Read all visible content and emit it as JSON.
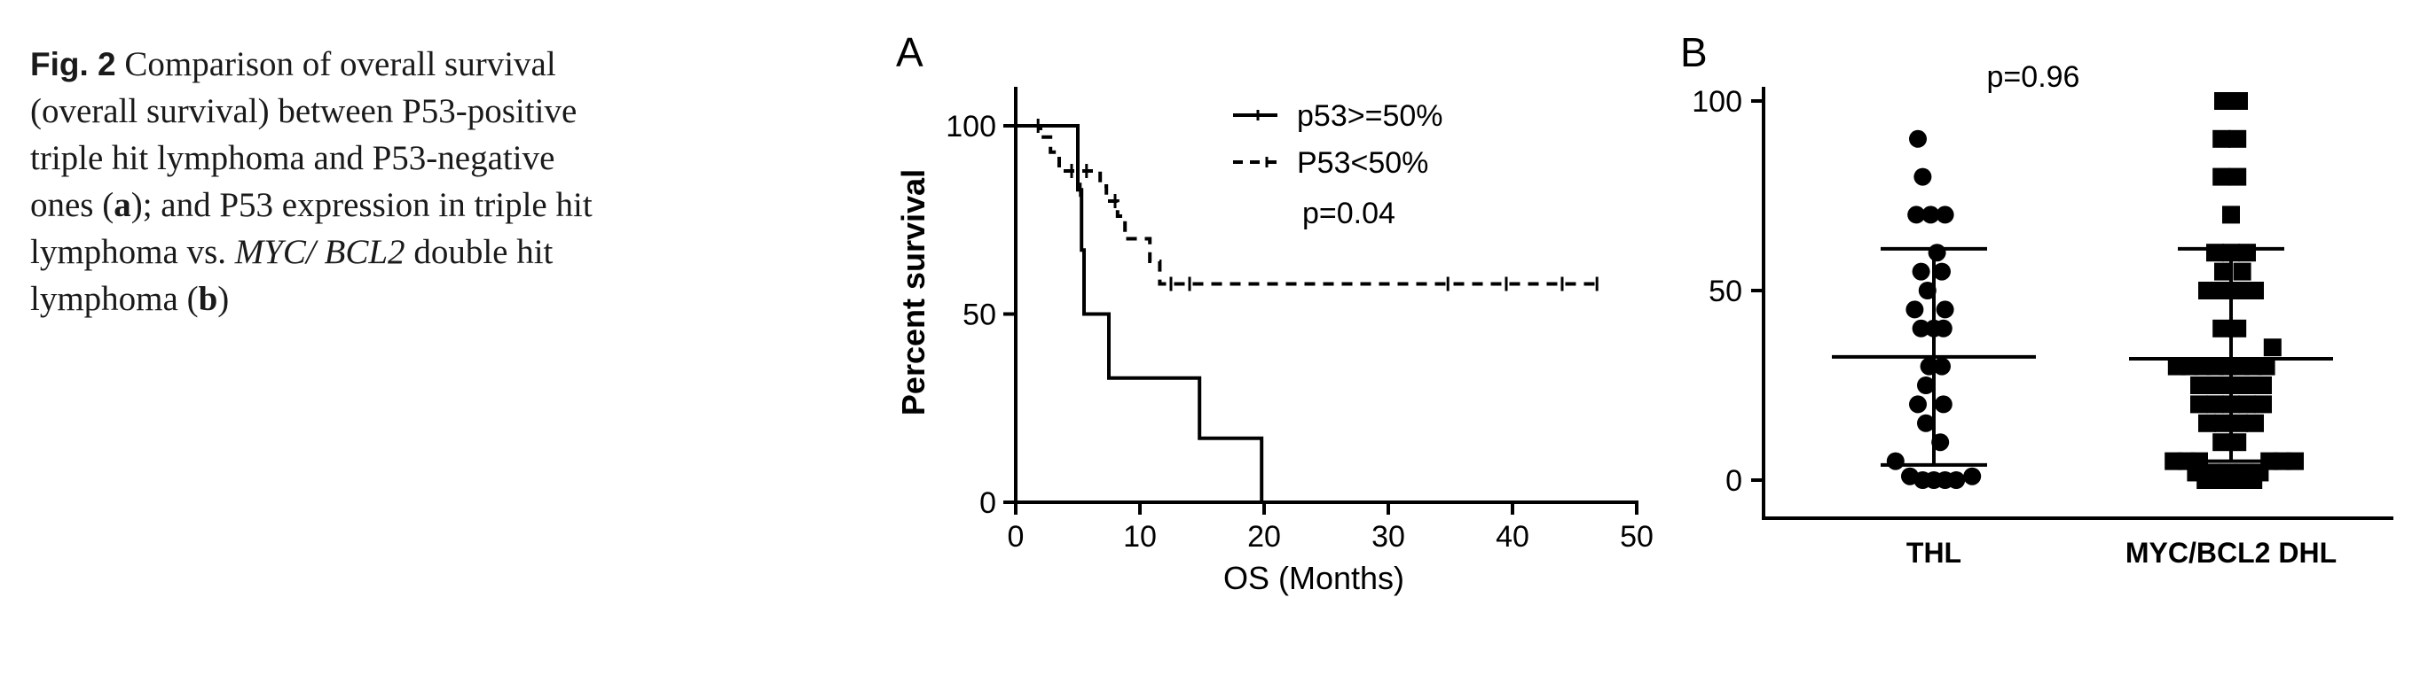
{
  "caption": {
    "fig_label": "Fig. 2",
    "part1": " Comparison of overall survival (overall survival) between P53-positive triple hit lymphoma and P53-negative ones (",
    "ref_a": "a",
    "part2": "); and P53 expression in triple hit lymphoma vs. ",
    "genes": "MYC/ BCL2",
    "part3": " double hit lymphoma (",
    "ref_b": "b",
    "part4": ")"
  },
  "chart_data": [
    {
      "type": "line",
      "panel_label": "A",
      "xlabel": "OS (Months)",
      "ylabel": "Percent survival",
      "xlim": [
        0,
        50
      ],
      "ylim": [
        0,
        100
      ],
      "xticks": [
        "0",
        "10",
        "20",
        "30",
        "40",
        "50"
      ],
      "yticks": [
        "0",
        "50",
        "100"
      ],
      "legend_position": "top-right",
      "annotation": "p=0.04",
      "series": [
        {
          "name": "p53>=50%",
          "style": "solid",
          "steps": [
            [
              0,
              100
            ],
            [
              5,
              100
            ],
            [
              5,
              83
            ],
            [
              5.3,
              83
            ],
            [
              5.3,
              67
            ],
            [
              5.5,
              67
            ],
            [
              5.5,
              50
            ],
            [
              7.5,
              50
            ],
            [
              7.5,
              33
            ],
            [
              14.8,
              33
            ],
            [
              14.8,
              17
            ],
            [
              19.8,
              17
            ],
            [
              19.8,
              0
            ]
          ],
          "censor_x": [
            5.2
          ]
        },
        {
          "name": "P53<50%",
          "style": "dashed",
          "steps": [
            [
              0,
              100
            ],
            [
              2,
              100
            ],
            [
              2,
              97
            ],
            [
              2.8,
              97
            ],
            [
              2.8,
              93
            ],
            [
              3.5,
              93
            ],
            [
              3.5,
              88
            ],
            [
              6.8,
              88
            ],
            [
              6.8,
              84
            ],
            [
              7.3,
              84
            ],
            [
              7.3,
              80
            ],
            [
              8.2,
              80
            ],
            [
              8.2,
              76
            ],
            [
              8.8,
              76
            ],
            [
              8.8,
              70
            ],
            [
              10.8,
              70
            ],
            [
              10.8,
              64
            ],
            [
              11.6,
              64
            ],
            [
              11.6,
              58
            ],
            [
              47,
              58
            ]
          ],
          "censor_x": [
            1.8,
            4.5,
            5.7,
            8,
            12.5,
            14,
            34.8,
            39.5,
            44,
            46.8
          ]
        }
      ]
    },
    {
      "type": "scatter",
      "panel_label": "B",
      "ylim": [
        0,
        100
      ],
      "yticks": [
        "0",
        "50",
        "100"
      ],
      "categories": [
        "THL",
        "MYC/BCL2 DHL"
      ],
      "annotation": "p=0.96",
      "series": [
        {
          "name": "THL",
          "marker": "circle",
          "mean": 32.5,
          "sd_upper": 61,
          "sd_lower": 4,
          "points": [
            [
              -0.1,
              90
            ],
            [
              -0.07,
              80
            ],
            [
              -0.11,
              70
            ],
            [
              -0.02,
              70
            ],
            [
              0.07,
              70
            ],
            [
              0.02,
              60
            ],
            [
              -0.08,
              55
            ],
            [
              0.05,
              55
            ],
            [
              -0.04,
              50
            ],
            [
              -0.12,
              45
            ],
            [
              0.07,
              45
            ],
            [
              -0.08,
              40
            ],
            [
              0.0,
              40
            ],
            [
              0.06,
              40
            ],
            [
              -0.03,
              30
            ],
            [
              0.05,
              30
            ],
            [
              -0.05,
              25
            ],
            [
              -0.1,
              20
            ],
            [
              0.06,
              20
            ],
            [
              -0.05,
              15
            ],
            [
              0.04,
              10
            ],
            [
              -0.24,
              5
            ],
            [
              -0.15,
              1
            ],
            [
              -0.07,
              0
            ],
            [
              0.0,
              0
            ],
            [
              0.07,
              0
            ],
            [
              0.14,
              0
            ],
            [
              0.24,
              1
            ]
          ]
        },
        {
          "name": "MYC/BCL2 DHL",
          "marker": "square",
          "mean": 32,
          "sd_upper": 61,
          "sd_lower": 5,
          "points": [
            [
              -0.05,
              100
            ],
            [
              0.05,
              100
            ],
            [
              -0.06,
              90
            ],
            [
              0.04,
              90
            ],
            [
              -0.06,
              80
            ],
            [
              0.04,
              80
            ],
            [
              0.0,
              70
            ],
            [
              -0.1,
              60
            ],
            [
              0.0,
              60
            ],
            [
              0.1,
              60
            ],
            [
              -0.05,
              55
            ],
            [
              0.07,
              55
            ],
            [
              -0.15,
              50
            ],
            [
              -0.05,
              50
            ],
            [
              0.05,
              50
            ],
            [
              0.15,
              50
            ],
            [
              -0.06,
              40
            ],
            [
              0.04,
              40
            ],
            [
              0.26,
              35
            ],
            [
              -0.34,
              30
            ],
            [
              -0.26,
              30
            ],
            [
              -0.18,
              30
            ],
            [
              -0.1,
              30
            ],
            [
              -0.02,
              30
            ],
            [
              0.06,
              30
            ],
            [
              0.14,
              30
            ],
            [
              0.22,
              30
            ],
            [
              -0.2,
              25
            ],
            [
              -0.1,
              25
            ],
            [
              0.0,
              25
            ],
            [
              0.1,
              25
            ],
            [
              0.2,
              25
            ],
            [
              -0.2,
              20
            ],
            [
              -0.1,
              20
            ],
            [
              0.0,
              20
            ],
            [
              0.1,
              20
            ],
            [
              0.2,
              20
            ],
            [
              -0.15,
              15
            ],
            [
              -0.05,
              15
            ],
            [
              0.05,
              15
            ],
            [
              0.15,
              15
            ],
            [
              -0.06,
              10
            ],
            [
              0.04,
              10
            ],
            [
              -0.36,
              5
            ],
            [
              -0.28,
              5
            ],
            [
              -0.2,
              5
            ],
            [
              0.24,
              5
            ],
            [
              0.32,
              5
            ],
            [
              0.4,
              5
            ],
            [
              -0.22,
              2
            ],
            [
              -0.12,
              2
            ],
            [
              -0.02,
              2
            ],
            [
              0.08,
              2
            ],
            [
              0.18,
              2
            ],
            [
              -0.16,
              0
            ],
            [
              -0.06,
              0
            ],
            [
              0.04,
              0
            ],
            [
              0.14,
              0
            ]
          ]
        }
      ]
    }
  ]
}
